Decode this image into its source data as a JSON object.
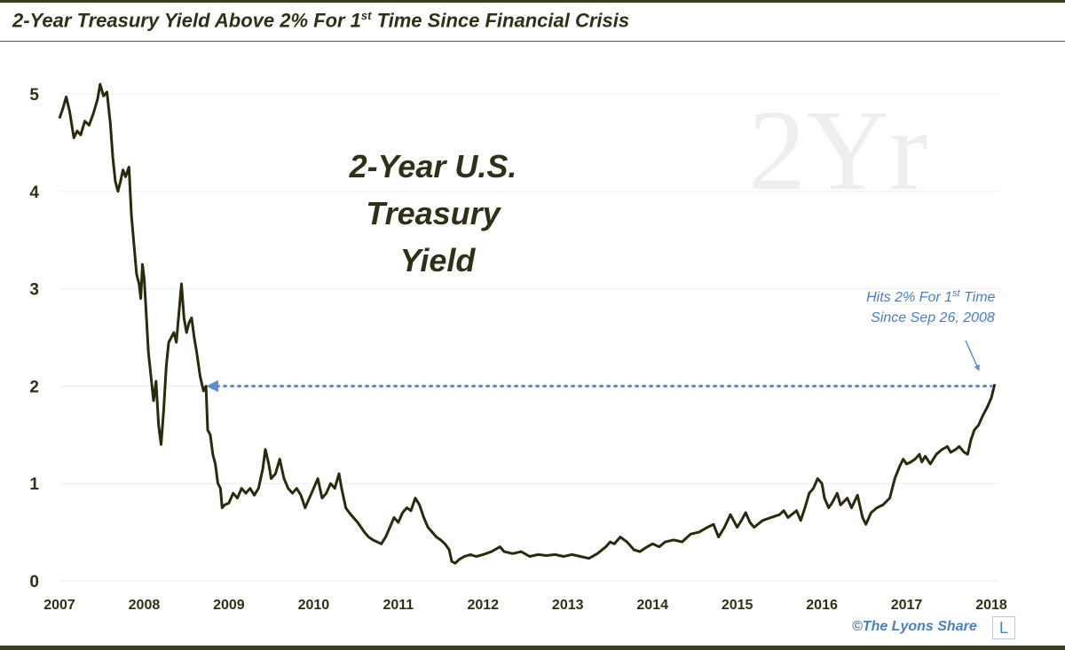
{
  "header": {
    "title_part1": "2-Year Treasury Yield Above 2% For 1",
    "title_sup": "st",
    "title_part2": " Time Since Financial Crisis"
  },
  "chart_data": {
    "type": "line",
    "ylim": [
      0,
      5.25
    ],
    "xlim": [
      2007,
      2018.1
    ],
    "yticks": [
      "0",
      "1",
      "2",
      "3",
      "4",
      "5"
    ],
    "xticks": [
      "2007",
      "2008",
      "2009",
      "2010",
      "2011",
      "2012",
      "2013",
      "2014",
      "2015",
      "2016",
      "2017",
      "2018"
    ],
    "grid": true,
    "series": [
      {
        "color": "#2b2a0c",
        "points": [
          [
            2007.0,
            4.75
          ],
          [
            2007.04,
            4.85
          ],
          [
            2007.08,
            4.97
          ],
          [
            2007.12,
            4.82
          ],
          [
            2007.17,
            4.55
          ],
          [
            2007.21,
            4.62
          ],
          [
            2007.25,
            4.58
          ],
          [
            2007.3,
            4.72
          ],
          [
            2007.35,
            4.68
          ],
          [
            2007.4,
            4.8
          ],
          [
            2007.45,
            4.95
          ],
          [
            2007.48,
            5.1
          ],
          [
            2007.52,
            4.98
          ],
          [
            2007.56,
            5.02
          ],
          [
            2007.6,
            4.7
          ],
          [
            2007.63,
            4.35
          ],
          [
            2007.66,
            4.1
          ],
          [
            2007.69,
            4.0
          ],
          [
            2007.72,
            4.1
          ],
          [
            2007.75,
            4.22
          ],
          [
            2007.78,
            4.15
          ],
          [
            2007.82,
            4.25
          ],
          [
            2007.85,
            3.75
          ],
          [
            2007.88,
            3.45
          ],
          [
            2007.91,
            3.15
          ],
          [
            2007.94,
            3.05
          ],
          [
            2007.96,
            2.9
          ],
          [
            2007.98,
            3.25
          ],
          [
            2008.0,
            3.1
          ],
          [
            2008.02,
            2.8
          ],
          [
            2008.05,
            2.35
          ],
          [
            2008.08,
            2.1
          ],
          [
            2008.11,
            1.85
          ],
          [
            2008.14,
            2.05
          ],
          [
            2008.17,
            1.6
          ],
          [
            2008.2,
            1.4
          ],
          [
            2008.23,
            1.75
          ],
          [
            2008.26,
            2.2
          ],
          [
            2008.29,
            2.45
          ],
          [
            2008.32,
            2.5
          ],
          [
            2008.35,
            2.55
          ],
          [
            2008.38,
            2.45
          ],
          [
            2008.41,
            2.75
          ],
          [
            2008.44,
            3.05
          ],
          [
            2008.47,
            2.7
          ],
          [
            2008.5,
            2.55
          ],
          [
            2008.53,
            2.65
          ],
          [
            2008.56,
            2.7
          ],
          [
            2008.59,
            2.5
          ],
          [
            2008.62,
            2.35
          ],
          [
            2008.66,
            2.1
          ],
          [
            2008.7,
            1.95
          ],
          [
            2008.73,
            2.0
          ],
          [
            2008.75,
            1.55
          ],
          [
            2008.78,
            1.5
          ],
          [
            2008.81,
            1.3
          ],
          [
            2008.84,
            1.2
          ],
          [
            2008.87,
            1.0
          ],
          [
            2008.9,
            0.95
          ],
          [
            2008.92,
            0.75
          ],
          [
            2008.95,
            0.78
          ],
          [
            2009.0,
            0.8
          ],
          [
            2009.05,
            0.9
          ],
          [
            2009.1,
            0.85
          ],
          [
            2009.15,
            0.95
          ],
          [
            2009.2,
            0.9
          ],
          [
            2009.25,
            0.95
          ],
          [
            2009.3,
            0.88
          ],
          [
            2009.35,
            0.95
          ],
          [
            2009.4,
            1.15
          ],
          [
            2009.43,
            1.35
          ],
          [
            2009.47,
            1.2
          ],
          [
            2009.5,
            1.05
          ],
          [
            2009.55,
            1.1
          ],
          [
            2009.6,
            1.25
          ],
          [
            2009.65,
            1.05
          ],
          [
            2009.7,
            0.95
          ],
          [
            2009.75,
            0.9
          ],
          [
            2009.8,
            0.95
          ],
          [
            2009.85,
            0.88
          ],
          [
            2009.9,
            0.75
          ],
          [
            2009.95,
            0.85
          ],
          [
            2010.0,
            0.95
          ],
          [
            2010.05,
            1.05
          ],
          [
            2010.1,
            0.85
          ],
          [
            2010.15,
            0.9
          ],
          [
            2010.2,
            1.0
          ],
          [
            2010.25,
            0.95
          ],
          [
            2010.3,
            1.1
          ],
          [
            2010.33,
            0.95
          ],
          [
            2010.38,
            0.75
          ],
          [
            2010.42,
            0.7
          ],
          [
            2010.47,
            0.65
          ],
          [
            2010.52,
            0.6
          ],
          [
            2010.56,
            0.55
          ],
          [
            2010.6,
            0.5
          ],
          [
            2010.65,
            0.45
          ],
          [
            2010.7,
            0.42
          ],
          [
            2010.75,
            0.4
          ],
          [
            2010.8,
            0.38
          ],
          [
            2010.85,
            0.45
          ],
          [
            2010.9,
            0.55
          ],
          [
            2010.95,
            0.65
          ],
          [
            2011.0,
            0.6
          ],
          [
            2011.05,
            0.7
          ],
          [
            2011.1,
            0.75
          ],
          [
            2011.15,
            0.72
          ],
          [
            2011.2,
            0.85
          ],
          [
            2011.25,
            0.78
          ],
          [
            2011.3,
            0.65
          ],
          [
            2011.35,
            0.55
          ],
          [
            2011.4,
            0.5
          ],
          [
            2011.45,
            0.45
          ],
          [
            2011.5,
            0.42
          ],
          [
            2011.55,
            0.38
          ],
          [
            2011.6,
            0.32
          ],
          [
            2011.63,
            0.2
          ],
          [
            2011.67,
            0.18
          ],
          [
            2011.72,
            0.22
          ],
          [
            2011.78,
            0.25
          ],
          [
            2011.85,
            0.27
          ],
          [
            2011.92,
            0.25
          ],
          [
            2012.0,
            0.27
          ],
          [
            2012.1,
            0.3
          ],
          [
            2012.2,
            0.35
          ],
          [
            2012.25,
            0.3
          ],
          [
            2012.35,
            0.28
          ],
          [
            2012.45,
            0.3
          ],
          [
            2012.55,
            0.25
          ],
          [
            2012.65,
            0.27
          ],
          [
            2012.75,
            0.26
          ],
          [
            2012.85,
            0.27
          ],
          [
            2012.95,
            0.25
          ],
          [
            2013.05,
            0.27
          ],
          [
            2013.15,
            0.25
          ],
          [
            2013.25,
            0.23
          ],
          [
            2013.35,
            0.28
          ],
          [
            2013.45,
            0.35
          ],
          [
            2013.5,
            0.4
          ],
          [
            2013.55,
            0.38
          ],
          [
            2013.62,
            0.45
          ],
          [
            2013.7,
            0.4
          ],
          [
            2013.78,
            0.32
          ],
          [
            2013.85,
            0.3
          ],
          [
            2013.92,
            0.34
          ],
          [
            2014.0,
            0.38
          ],
          [
            2014.08,
            0.35
          ],
          [
            2014.15,
            0.4
          ],
          [
            2014.25,
            0.42
          ],
          [
            2014.35,
            0.4
          ],
          [
            2014.45,
            0.48
          ],
          [
            2014.55,
            0.5
          ],
          [
            2014.65,
            0.55
          ],
          [
            2014.72,
            0.58
          ],
          [
            2014.78,
            0.45
          ],
          [
            2014.85,
            0.55
          ],
          [
            2014.92,
            0.68
          ],
          [
            2015.0,
            0.55
          ],
          [
            2015.05,
            0.62
          ],
          [
            2015.1,
            0.7
          ],
          [
            2015.15,
            0.6
          ],
          [
            2015.2,
            0.55
          ],
          [
            2015.3,
            0.62
          ],
          [
            2015.4,
            0.65
          ],
          [
            2015.5,
            0.68
          ],
          [
            2015.55,
            0.72
          ],
          [
            2015.6,
            0.65
          ],
          [
            2015.7,
            0.72
          ],
          [
            2015.75,
            0.62
          ],
          [
            2015.8,
            0.75
          ],
          [
            2015.85,
            0.9
          ],
          [
            2015.9,
            0.95
          ],
          [
            2015.95,
            1.05
          ],
          [
            2016.0,
            1.0
          ],
          [
            2016.03,
            0.85
          ],
          [
            2016.08,
            0.75
          ],
          [
            2016.12,
            0.8
          ],
          [
            2016.18,
            0.9
          ],
          [
            2016.22,
            0.78
          ],
          [
            2016.3,
            0.85
          ],
          [
            2016.35,
            0.75
          ],
          [
            2016.42,
            0.88
          ],
          [
            2016.48,
            0.65
          ],
          [
            2016.52,
            0.58
          ],
          [
            2016.58,
            0.7
          ],
          [
            2016.65,
            0.75
          ],
          [
            2016.72,
            0.78
          ],
          [
            2016.8,
            0.85
          ],
          [
            2016.86,
            1.05
          ],
          [
            2016.92,
            1.18
          ],
          [
            2016.96,
            1.25
          ],
          [
            2017.0,
            1.2
          ],
          [
            2017.05,
            1.22
          ],
          [
            2017.1,
            1.25
          ],
          [
            2017.15,
            1.3
          ],
          [
            2017.18,
            1.22
          ],
          [
            2017.22,
            1.28
          ],
          [
            2017.28,
            1.2
          ],
          [
            2017.35,
            1.3
          ],
          [
            2017.42,
            1.35
          ],
          [
            2017.48,
            1.38
          ],
          [
            2017.52,
            1.32
          ],
          [
            2017.58,
            1.35
          ],
          [
            2017.62,
            1.38
          ],
          [
            2017.68,
            1.32
          ],
          [
            2017.72,
            1.3
          ],
          [
            2017.76,
            1.45
          ],
          [
            2017.8,
            1.55
          ],
          [
            2017.85,
            1.6
          ],
          [
            2017.9,
            1.7
          ],
          [
            2017.95,
            1.78
          ],
          [
            2018.0,
            1.88
          ],
          [
            2018.04,
            2.02
          ]
        ]
      }
    ]
  },
  "watermark": "2Yr",
  "chart_label": [
    "2-Year U.S.",
    "Treasury",
    "Yield"
  ],
  "annotation": {
    "line1_pre": "Hits 2% For 1",
    "line1_sup": "st",
    "line1_post": " Time",
    "line2": "Since Sep 26, 2008",
    "level": 2
  },
  "credit": "©The Lyons Share",
  "logo": "L",
  "colors": {
    "series": "#2b2a0c",
    "annotation": "#4a7ec0",
    "grid": "#eeeeee",
    "text": "#2f3016"
  }
}
